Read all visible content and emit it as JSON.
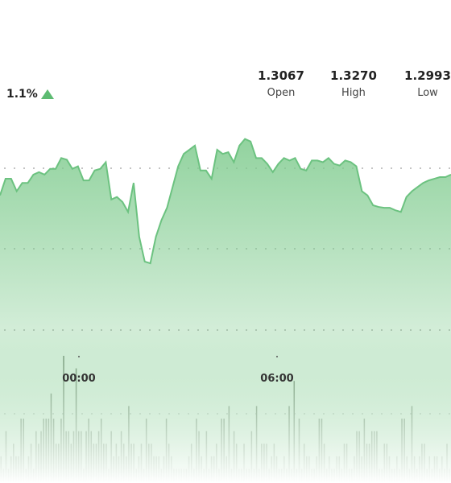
{
  "header": {
    "change": "1.1%",
    "change_direction_icon": "triangle-up-icon",
    "stats": [
      {
        "value": "1.3067",
        "label": "Open"
      },
      {
        "value": "1.3270",
        "label": "High"
      },
      {
        "value": "1.2993",
        "label": "Low"
      }
    ]
  },
  "colors": {
    "line": "#6cc280",
    "area_top": "#7fcb8e",
    "area_bottom": "#ffffff",
    "volume": "#6b7266",
    "up_icon": "#5dbb72",
    "grid_dots": "#9a9a9a"
  },
  "chart_data": {
    "type": "area",
    "x_ticks": [
      "00:00",
      "06:00"
    ],
    "price": {
      "ylim": [
        1.294,
        1.328
      ],
      "values": [
        1.319,
        1.321,
        1.321,
        1.3195,
        1.3205,
        1.3205,
        1.3215,
        1.3218,
        1.3215,
        1.3222,
        1.3222,
        1.3235,
        1.3233,
        1.3222,
        1.3225,
        1.3208,
        1.3208,
        1.322,
        1.3222,
        1.323,
        1.3185,
        1.3188,
        1.3182,
        1.317,
        1.3205,
        1.314,
        1.311,
        1.3108,
        1.314,
        1.316,
        1.3175,
        1.32,
        1.3225,
        1.324,
        1.3245,
        1.325,
        1.322,
        1.322,
        1.321,
        1.3245,
        1.324,
        1.3242,
        1.323,
        1.325,
        1.3258,
        1.3255,
        1.3235,
        1.3235,
        1.3228,
        1.3218,
        1.3228,
        1.3235,
        1.3232,
        1.3235,
        1.3222,
        1.322,
        1.3232,
        1.3232,
        1.323,
        1.3235,
        1.3228,
        1.3226,
        1.3232,
        1.323,
        1.3225,
        1.3195,
        1.319,
        1.3178,
        1.3176,
        1.3175,
        1.3175,
        1.3172,
        1.317,
        1.3188,
        1.3195,
        1.32,
        1.3205,
        1.3208,
        1.321,
        1.3212,
        1.3212,
        1.3215
      ]
    },
    "volume": {
      "values": [
        2,
        1,
        4,
        1,
        2,
        3,
        2,
        2,
        5,
        5,
        1,
        2,
        3,
        1,
        4,
        3,
        4,
        5,
        5,
        5,
        7,
        5,
        3,
        3,
        5,
        10,
        4,
        4,
        3,
        4,
        9,
        4,
        4,
        1,
        4,
        5,
        4,
        3,
        3,
        4,
        5,
        3,
        3,
        1,
        4,
        2,
        3,
        2,
        4,
        3,
        2,
        6,
        3,
        3,
        1,
        2,
        3,
        1,
        5,
        3,
        3,
        2,
        2,
        2,
        1,
        2,
        5,
        3,
        2,
        1,
        1,
        1,
        1,
        1,
        1,
        2,
        3,
        1,
        5,
        4,
        2,
        1,
        4,
        1,
        2,
        2,
        3,
        1,
        5,
        5,
        2,
        6,
        1,
        4,
        3,
        1,
        1,
        3,
        1,
        1,
        4,
        1,
        6,
        1,
        3,
        3,
        3,
        1,
        2,
        3,
        2,
        1,
        1,
        2,
        1,
        6,
        1,
        8,
        1,
        5,
        1,
        3,
        2,
        2,
        1,
        1,
        2,
        5,
        5,
        3,
        1,
        2,
        1,
        1,
        2,
        2,
        1,
        3,
        3,
        1,
        1,
        2,
        4,
        4,
        2,
        5,
        3,
        3,
        4,
        4,
        4,
        1,
        1,
        3,
        3,
        2,
        1,
        1,
        2,
        1,
        5,
        5,
        2,
        1,
        6,
        2,
        1,
        2,
        3,
        3,
        1,
        2,
        1,
        2,
        2,
        1,
        2,
        1,
        3,
        1
      ]
    }
  }
}
